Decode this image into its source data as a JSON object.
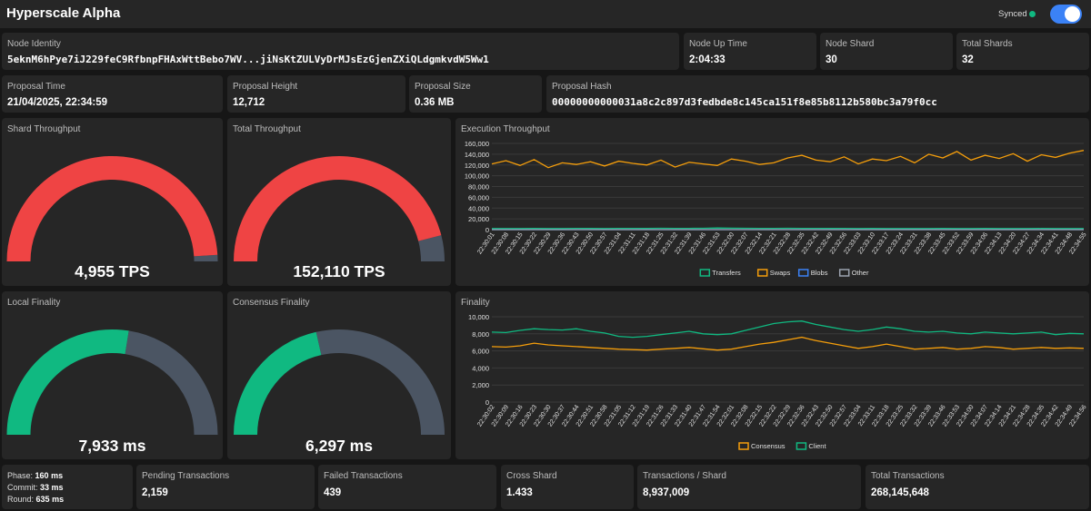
{
  "header": {
    "title": "Hyperscale Alpha",
    "sync_status": "Synced",
    "sync_color": "#10b981",
    "toggle_on": true,
    "toggle_color": "#3b82f6"
  },
  "info": {
    "node_identity": {
      "label": "Node Identity",
      "value": "5eknM6hPye7iJ229feC9RfbnpFHAxWttBebo7WV...jiNsKtZULVyDrMJsEzGjenZXiQLdgmkvdW5Ww1"
    },
    "node_uptime": {
      "label": "Node Up Time",
      "value": "2:04:33"
    },
    "node_shard": {
      "label": "Node Shard",
      "value": "30"
    },
    "total_shards": {
      "label": "Total Shards",
      "value": "32"
    },
    "proposal_time": {
      "label": "Proposal Time",
      "value": "21/04/2025, 22:34:59"
    },
    "proposal_height": {
      "label": "Proposal Height",
      "value": "12,712"
    },
    "proposal_size": {
      "label": "Proposal Size",
      "value": "0.36 MB"
    },
    "proposal_hash": {
      "label": "Proposal Hash",
      "value": "00000000000031a8c2c897d3fedbde8c145ca151f8e85b8112b580bc3a79f0cc"
    }
  },
  "gauges": {
    "shard_throughput": {
      "label": "Shard Throughput",
      "value": "4,955 TPS",
      "fraction": 0.98,
      "color": "#ef4444"
    },
    "total_throughput": {
      "label": "Total Throughput",
      "value": "152,110 TPS",
      "fraction": 0.92,
      "color": "#ef4444"
    },
    "local_finality": {
      "label": "Local Finality",
      "value": "7,933 ms",
      "fraction": 0.55,
      "color": "#10b981"
    },
    "consensus_finality": {
      "label": "Consensus Finality",
      "value": "6,297 ms",
      "fraction": 0.43,
      "color": "#10b981"
    },
    "track_color": "#4b5563"
  },
  "charts": {
    "execution": {
      "title": "Execution Throughput",
      "chart_data": {
        "type": "line",
        "ylim": [
          0,
          160000
        ],
        "yticks": [
          "0",
          "20,000",
          "40,000",
          "60,000",
          "80,000",
          "100,000",
          "120,000",
          "140,000",
          "160,000"
        ],
        "x": [
          "22:30:01",
          "22:30:08",
          "22:30:15",
          "22:30:22",
          "22:30:29",
          "22:30:36",
          "22:30:43",
          "22:30:50",
          "22:30:57",
          "22:31:04",
          "22:31:11",
          "22:31:18",
          "22:31:25",
          "22:31:32",
          "22:31:39",
          "22:31:46",
          "22:31:53",
          "22:32:00",
          "22:32:07",
          "22:32:14",
          "22:32:21",
          "22:32:28",
          "22:32:35",
          "22:32:42",
          "22:32:49",
          "22:32:56",
          "22:33:03",
          "22:33:10",
          "22:33:17",
          "22:33:24",
          "22:33:31",
          "22:33:38",
          "22:33:45",
          "22:33:52",
          "22:33:59",
          "22:34:06",
          "22:34:13",
          "22:34:20",
          "22:34:27",
          "22:34:34",
          "22:34:41",
          "22:34:48",
          "22:34:55"
        ],
        "series": [
          {
            "name": "Transfers",
            "color": "#10b981",
            "values": [
              2000,
              2100,
              2000,
              2200,
              2100,
              2000,
              2300,
              2200,
              2100,
              2400,
              2300,
              2200,
              2500,
              2400,
              2300,
              2600,
              3000,
              2700,
              2500,
              2400,
              2300,
              2500,
              2400,
              2300,
              2200,
              2300,
              2100,
              2200,
              2000,
              2100,
              2100,
              2000,
              2200,
              2100,
              2000,
              2200,
              2100,
              2000,
              2100,
              2200,
              2000,
              2100,
              2000
            ]
          },
          {
            "name": "Swaps",
            "color": "#f59e0b",
            "values": [
              122000,
              128000,
              119000,
              130000,
              115000,
              124000,
              121000,
              126000,
              118000,
              127000,
              123000,
              120000,
              129000,
              116000,
              125000,
              122000,
              119000,
              131000,
              127000,
              121000,
              124000,
              133000,
              138000,
              129000,
              126000,
              135000,
              122000,
              131000,
              128000,
              136000,
              124000,
              140000,
              133000,
              145000,
              129000,
              138000,
              132000,
              141000,
              127000,
              139000,
              134000,
              142000,
              147000
            ]
          },
          {
            "name": "Blobs",
            "color": "#3b82f6",
            "values": [
              0,
              0,
              0,
              0,
              0,
              0,
              0,
              0,
              0,
              0,
              0,
              0,
              0,
              0,
              0,
              0,
              0,
              0,
              0,
              0,
              0,
              0,
              0,
              0,
              0,
              0,
              0,
              0,
              0,
              0,
              0,
              0,
              0,
              0,
              0,
              0,
              0,
              0,
              0,
              0,
              0,
              0,
              0
            ]
          },
          {
            "name": "Other",
            "color": "#9ca3af",
            "values": [
              0,
              0,
              0,
              0,
              0,
              0,
              0,
              0,
              0,
              0,
              0,
              0,
              0,
              0,
              0,
              0,
              0,
              0,
              0,
              0,
              0,
              0,
              0,
              0,
              0,
              0,
              0,
              0,
              0,
              0,
              0,
              0,
              0,
              0,
              0,
              0,
              0,
              0,
              0,
              0,
              0,
              0,
              0
            ]
          }
        ]
      }
    },
    "finality": {
      "title": "Finality",
      "chart_data": {
        "type": "line",
        "ylim": [
          0,
          10000
        ],
        "yticks": [
          "0",
          "2,000",
          "4,000",
          "6,000",
          "8,000",
          "10,000"
        ],
        "x": [
          "22:30:02",
          "22:30:09",
          "22:30:16",
          "22:30:23",
          "22:30:30",
          "22:30:37",
          "22:30:44",
          "22:30:51",
          "22:30:58",
          "22:31:05",
          "22:31:12",
          "22:31:19",
          "22:31:26",
          "22:31:33",
          "22:31:40",
          "22:31:47",
          "22:31:54",
          "22:32:01",
          "22:32:08",
          "22:32:15",
          "22:32:22",
          "22:32:29",
          "22:32:36",
          "22:32:43",
          "22:32:50",
          "22:32:57",
          "22:33:04",
          "22:33:11",
          "22:33:18",
          "22:33:25",
          "22:33:32",
          "22:33:39",
          "22:33:46",
          "22:33:53",
          "22:34:00",
          "22:34:07",
          "22:34:14",
          "22:34:21",
          "22:34:28",
          "22:34:35",
          "22:34:42",
          "22:34:49",
          "22:34:56"
        ],
        "series": [
          {
            "name": "Consensus",
            "color": "#f59e0b",
            "values": [
              6500,
              6450,
              6600,
              6900,
              6700,
              6600,
              6500,
              6400,
              6300,
              6200,
              6150,
              6100,
              6200,
              6300,
              6400,
              6250,
              6100,
              6200,
              6500,
              6800,
              7000,
              7300,
              7600,
              7200,
              6900,
              6600,
              6300,
              6500,
              6800,
              6500,
              6200,
              6300,
              6400,
              6200,
              6300,
              6500,
              6400,
              6200,
              6300,
              6400,
              6300,
              6350,
              6300
            ]
          },
          {
            "name": "Client",
            "color": "#10b981",
            "values": [
              8200,
              8150,
              8400,
              8600,
              8500,
              8450,
              8600,
              8300,
              8100,
              7700,
              7600,
              7700,
              7900,
              8100,
              8300,
              8000,
              7900,
              8000,
              8400,
              8800,
              9200,
              9400,
              9500,
              9100,
              8800,
              8500,
              8300,
              8500,
              8800,
              8600,
              8300,
              8200,
              8300,
              8100,
              8000,
              8200,
              8100,
              8000,
              8100,
              8200,
              7900,
              8050,
              8000
            ]
          }
        ]
      }
    }
  },
  "footer": {
    "phase": {
      "phase_label": "Phase:",
      "phase_value": "160 ms",
      "commit_label": "Commit:",
      "commit_value": "33 ms",
      "round_label": "Round:",
      "round_value": "635 ms"
    },
    "pending": {
      "label": "Pending Transactions",
      "value": "2,159"
    },
    "failed": {
      "label": "Failed Transactions",
      "value": "439"
    },
    "cross_shard": {
      "label": "Cross Shard",
      "value": "1.433"
    },
    "tx_per_shard": {
      "label": "Transactions / Shard",
      "value": "8,937,009"
    },
    "total_tx": {
      "label": "Total Transactions",
      "value": "268,145,648"
    }
  }
}
